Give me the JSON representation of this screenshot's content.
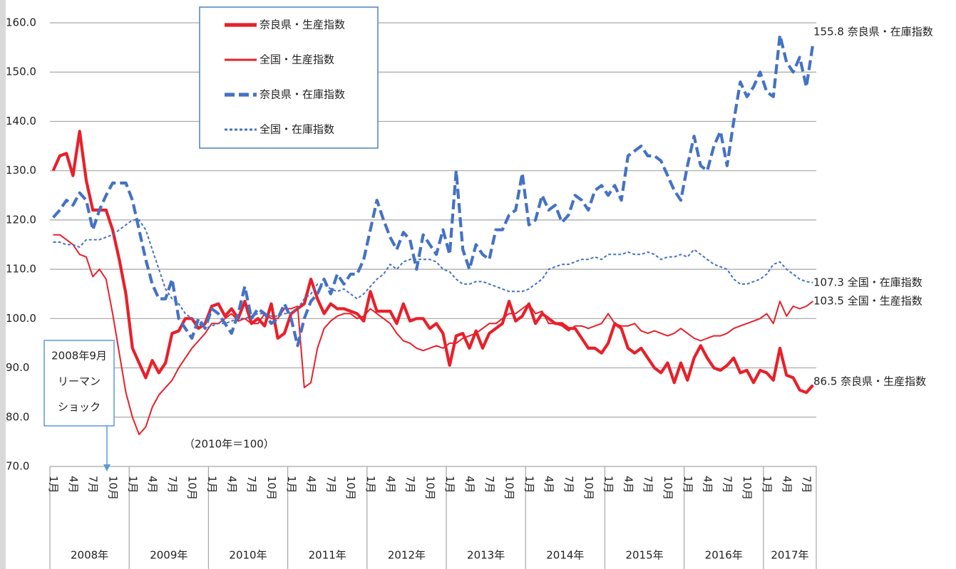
{
  "chart_data": {
    "type": "line",
    "ylim": [
      70,
      160
    ],
    "yticks": [
      {
        "value": 70,
        "label": "70.0"
      },
      {
        "value": 80,
        "label": "80.0"
      },
      {
        "value": 90,
        "label": "90.0"
      },
      {
        "value": 100,
        "label": "100.0"
      },
      {
        "value": 110,
        "label": "110.0"
      },
      {
        "value": 120,
        "label": "120.0"
      },
      {
        "value": 130,
        "label": "130.0"
      },
      {
        "value": 140,
        "label": "140.0"
      },
      {
        "value": 150,
        "label": "150.0"
      },
      {
        "value": 160,
        "label": "160.0"
      }
    ],
    "grid": true,
    "legend": "top-left",
    "categories": [
      "1月",
      null,
      null,
      "4月",
      null,
      null,
      "7月",
      null,
      null,
      "10月",
      null,
      null,
      "1月",
      null,
      null,
      "4月",
      null,
      null,
      "7月",
      null,
      null,
      "10月",
      null,
      null,
      "1月",
      null,
      null,
      "4月",
      null,
      null,
      "7月",
      null,
      null,
      "10月",
      null,
      null,
      "1月",
      null,
      null,
      "4月",
      null,
      null,
      "7月",
      null,
      null,
      "10月",
      null,
      null,
      "1月",
      null,
      null,
      "4月",
      null,
      null,
      "7月",
      null,
      null,
      "10月",
      null,
      null,
      "1月",
      null,
      null,
      "4月",
      null,
      null,
      "7月",
      null,
      null,
      "10月",
      null,
      null,
      "1月",
      null,
      null,
      "4月",
      null,
      null,
      "7月",
      null,
      null,
      "10月",
      null,
      null,
      "1月",
      null,
      null,
      "4月",
      null,
      null,
      "7月",
      null,
      null,
      "10月",
      null,
      null,
      "1月",
      null,
      null,
      "4月",
      null,
      null,
      "7月",
      null,
      null,
      "10月",
      null,
      null,
      "1月",
      null,
      null,
      "4月",
      null,
      null,
      "7月",
      null
    ],
    "years": [
      "2008年",
      "2009年",
      "2010年",
      "2011年",
      "2012年",
      "2013年",
      "2014年",
      "2015年",
      "2016年",
      "2017年"
    ],
    "series": [
      {
        "name": "奈良県・生産指数",
        "color": "#e8202a",
        "width": "thick",
        "style": "solid",
        "end_label": "86.5 奈良県・生産指数",
        "values": [
          130,
          133,
          133.5,
          129,
          138,
          128,
          122,
          122,
          122,
          118,
          112,
          105,
          94,
          91,
          88,
          91.5,
          89,
          91,
          97,
          97.5,
          100,
          100,
          98,
          99,
          102.5,
          103,
          100.5,
          102,
          100,
          103.5,
          99,
          100,
          98.5,
          103,
          96,
          97,
          101,
          102,
          103,
          108,
          104,
          101,
          103,
          102,
          102,
          101.5,
          101,
          99.5,
          105.5,
          101.5,
          101.5,
          101.5,
          99,
          103,
          99.5,
          100,
          100,
          98,
          99,
          97,
          90.5,
          96.5,
          97,
          94,
          97.5,
          94,
          97,
          98,
          99,
          103.5,
          99.5,
          100.5,
          103,
          99,
          101,
          100,
          99,
          99,
          98,
          98,
          96,
          94,
          94,
          93,
          95,
          99,
          98,
          94,
          93,
          94,
          92,
          90,
          89,
          91,
          87,
          91,
          87.5,
          92,
          94.5,
          92,
          90,
          89.5,
          90.5,
          92,
          89,
          89.5,
          87,
          89.5,
          89,
          87.5,
          94,
          88.5,
          88,
          85.5,
          85,
          86.5
        ]
      },
      {
        "name": "全国・生産指数",
        "color": "#e8202a",
        "width": "thin",
        "style": "solid",
        "end_label": "103.5 全国・生産指数",
        "values": [
          117,
          117,
          116,
          115,
          113,
          112.5,
          108.5,
          110,
          108,
          101,
          93,
          85,
          80,
          76.5,
          78,
          82,
          84.5,
          86,
          87.5,
          90,
          92,
          94,
          95.5,
          97,
          99,
          99,
          100,
          101,
          99.5,
          100,
          99,
          99,
          101,
          100,
          100,
          102,
          102,
          102.5,
          86,
          87,
          94,
          98,
          99.5,
          100.5,
          101,
          101,
          100,
          100.5,
          102,
          101,
          100,
          99,
          97,
          95.5,
          95,
          94,
          93.5,
          94,
          94.5,
          94,
          95,
          95,
          96,
          96.5,
          97,
          98,
          99,
          99,
          100,
          101,
          101,
          102,
          103,
          101,
          101.5,
          99,
          99,
          98.5,
          97.5,
          98.5,
          98.5,
          98,
          98.5,
          99,
          101,
          99,
          98.5,
          98.5,
          99,
          97.5,
          97,
          97.5,
          97,
          96.5,
          97,
          98,
          97,
          96,
          95.5,
          96,
          96.5,
          96.5,
          97,
          98,
          98.5,
          99,
          99.5,
          100,
          101,
          99,
          103.5,
          100.5,
          102.5,
          102,
          102.5,
          103.5
        ]
      },
      {
        "name": "奈良県・在庫指数",
        "color": "#4472c4",
        "width": "thick",
        "style": "dashed",
        "end_label": "155.8 奈良県・在庫指数",
        "values": [
          120.5,
          122,
          124,
          123,
          125.5,
          124,
          118,
          122,
          125,
          127.5,
          127.5,
          127.5,
          124,
          118,
          112,
          107,
          104,
          104,
          108,
          100,
          98,
          96,
          100,
          98,
          102,
          101,
          99,
          97,
          101,
          106.5,
          100,
          102,
          101,
          99,
          100,
          103,
          100,
          94.5,
          100,
          103.5,
          105,
          108,
          105,
          109,
          107,
          109,
          109,
          112,
          118,
          124,
          120,
          116.5,
          114,
          117.5,
          116,
          110,
          117,
          115,
          113,
          118,
          113,
          130,
          114,
          110,
          115,
          113,
          112,
          118,
          118,
          121,
          122,
          129.5,
          119,
          120,
          125,
          122,
          123,
          119.5,
          121,
          125,
          124,
          122,
          126,
          127,
          125,
          127,
          124,
          133,
          134,
          135,
          133,
          133,
          132,
          129,
          126,
          124,
          131,
          137,
          131,
          130,
          135,
          138,
          131,
          140,
          148,
          145,
          147,
          150,
          146,
          145,
          157.5,
          152,
          150,
          153,
          147,
          155.8
        ]
      },
      {
        "name": "全国・在庫指数",
        "color": "#4472c4",
        "width": "thin",
        "style": "dotted",
        "end_label": "107.3 全国・在庫指数",
        "values": [
          115.5,
          115.5,
          115,
          115,
          114.5,
          116,
          116,
          116,
          116.5,
          117,
          118,
          119,
          120,
          120,
          118,
          114,
          110,
          106,
          104,
          103,
          101,
          100,
          99,
          98,
          98.5,
          99,
          99,
          99.5,
          100,
          100,
          100.5,
          101,
          101,
          100.5,
          100.5,
          101,
          101,
          102,
          104,
          105,
          107,
          107,
          106,
          105.5,
          106,
          105,
          104,
          105,
          106.5,
          108,
          109,
          111,
          110,
          111.5,
          112,
          112,
          112,
          112,
          111.5,
          110,
          109.5,
          108,
          107,
          107,
          107.5,
          107.5,
          107,
          106.5,
          106,
          105.5,
          105.5,
          105.5,
          106,
          107,
          108,
          110,
          110.5,
          111,
          111,
          111.5,
          112,
          112,
          112.5,
          112,
          113,
          113,
          113,
          113.5,
          113,
          113,
          113.5,
          113,
          112,
          112.5,
          112.5,
          113,
          112.5,
          114,
          113,
          112,
          111,
          110.5,
          110,
          108,
          107,
          107,
          107.5,
          108,
          109,
          111,
          111.5,
          110,
          109,
          108,
          107.5,
          107.3
        ]
      }
    ],
    "annotations": {
      "event": [
        "2008年9月",
        "リーマン",
        "ショック"
      ],
      "base": "（2010年＝100）"
    }
  }
}
